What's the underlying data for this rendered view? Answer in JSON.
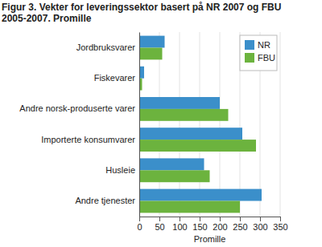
{
  "chart_data": {
    "type": "bar",
    "orientation": "horizontal",
    "title": "Figur 3. Vekter for leveringssektor basert på NR 2007 og FBU 2005-2007. Promille",
    "xlabel": "Promille",
    "categories": [
      "Jordbruksvarer",
      "Fiskevarer",
      "Andre norsk-produserte varer",
      "Importerte konsumvarer",
      "Husleie",
      "Andre tjenester"
    ],
    "series": [
      {
        "name": "NR",
        "color": "#3b8fca",
        "values": [
          63,
          12,
          200,
          256,
          161,
          304
        ]
      },
      {
        "name": "FBU",
        "color": "#6cb33e",
        "values": [
          57,
          7,
          221,
          290,
          175,
          250
        ]
      }
    ],
    "xlim": [
      0,
      350
    ],
    "xticks": [
      0,
      50,
      100,
      150,
      200,
      250,
      300,
      350
    ],
    "grid": true,
    "legend": "upper right"
  }
}
